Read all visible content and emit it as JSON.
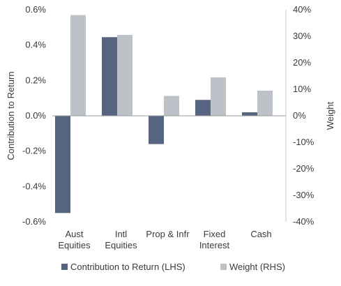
{
  "chart_data": {
    "type": "bar",
    "categories": [
      [
        "Aust",
        "Equities"
      ],
      [
        "Intl",
        "Equities"
      ],
      [
        "Prop & Infr"
      ],
      [
        "Fixed",
        "Interest"
      ],
      [
        "Cash"
      ]
    ],
    "series": [
      {
        "name": "Contribution to Return (LHS)",
        "axis": "left",
        "color": "#56657f",
        "values": [
          -0.55,
          0.445,
          -0.16,
          0.09,
          0.02
        ]
      },
      {
        "name": "Weight (RHS)",
        "axis": "right",
        "color": "#bdc2c9",
        "values": [
          38,
          30.5,
          7.5,
          14.5,
          9.5
        ]
      }
    ],
    "left_axis": {
      "label": "Contribution to Return",
      "ylim": [
        -0.6,
        0.6
      ],
      "ticks": [
        0.6,
        0.4,
        0.2,
        0.0,
        -0.2,
        -0.4,
        -0.6
      ],
      "tick_labels": [
        "0.6%",
        "0.4%",
        "0.2%",
        "0.0%",
        "-0.2%",
        "-0.4%",
        "-0.6%"
      ]
    },
    "right_axis": {
      "label": "Weight",
      "ylim": [
        -40,
        40
      ],
      "ticks": [
        40,
        30,
        20,
        10,
        0,
        -10,
        -20,
        -30,
        -40
      ],
      "tick_labels": [
        "40%",
        "30%",
        "20%",
        "10%",
        "0%",
        "-10%",
        "-20%",
        "-30%",
        "-40%"
      ]
    },
    "grid": false,
    "legend_position": "bottom"
  }
}
